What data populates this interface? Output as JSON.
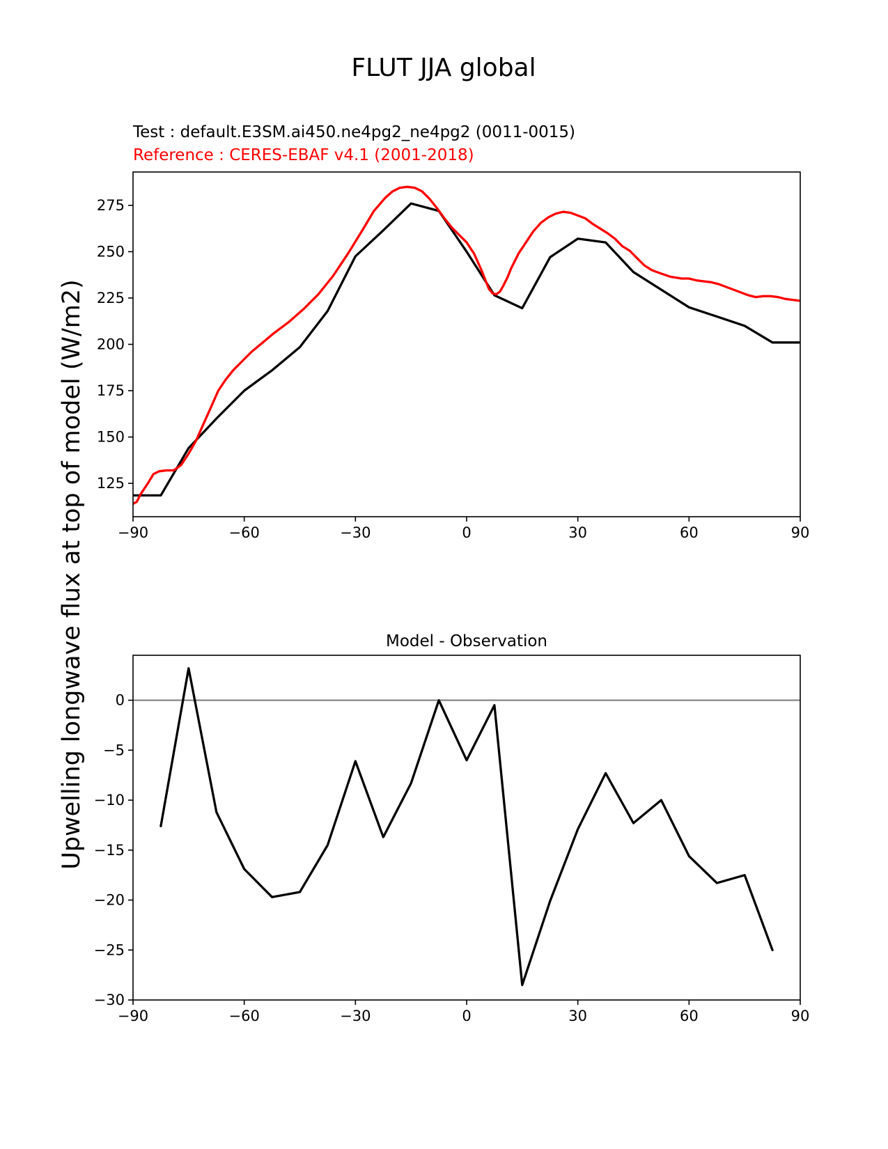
{
  "figure": {
    "suptitle": "FLUT JJA global",
    "ylabel": "Upwelling longwave flux at top of model (W/m2)"
  },
  "chart_data": [
    {
      "type": "line",
      "title_test": "Test : default.E3SM.ai450.ne4pg2_ne4pg2 (0011-0015)",
      "title_reference": "Reference : CERES-EBAF v4.1 (2001-2018)",
      "xlim": [
        -90,
        90
      ],
      "ylim": [
        107,
        293
      ],
      "xticks": [
        "−90",
        "−60",
        "−30",
        "0",
        "30",
        "60",
        "90"
      ],
      "yticks": [
        "125",
        "150",
        "175",
        "200",
        "225",
        "250",
        "275"
      ],
      "colors": {
        "test": "#000000",
        "reference": "#ff0000"
      },
      "series": [
        {
          "key": "test",
          "color": "#000000",
          "x": [
            -90,
            -82.5,
            -75,
            -67.5,
            -60,
            -52.5,
            -45,
            -37.5,
            -30,
            -22.5,
            -15,
            -7.5,
            0,
            7.5,
            15,
            22.5,
            30,
            37.5,
            45,
            52.5,
            60,
            67.5,
            75,
            82.5,
            90
          ],
          "y": [
            118.5,
            118.5,
            144,
            160,
            175,
            186,
            198.5,
            218,
            247.5,
            261.5,
            276,
            272,
            250,
            226.5,
            219.5,
            247,
            257,
            255,
            239,
            229.5,
            220,
            215,
            210,
            201,
            201
          ]
        },
        {
          "key": "reference",
          "color": "#ff0000",
          "x": [
            -90,
            -89,
            -88,
            -86,
            -84.5,
            -83,
            -81,
            -79,
            -77,
            -75,
            -73,
            -71,
            -69,
            -67,
            -65,
            -63,
            -61,
            -58,
            -55,
            -52,
            -48,
            -44,
            -40,
            -36,
            -32,
            -28,
            -25,
            -22,
            -20,
            -18,
            -16,
            -14,
            -12,
            -10,
            -8,
            -6,
            -4,
            -2,
            0,
            2,
            4,
            6,
            7,
            8,
            9,
            10,
            11,
            12,
            14,
            16,
            18,
            20,
            22,
            24,
            26,
            28,
            30,
            32,
            34,
            36,
            38,
            40,
            42,
            44,
            46,
            48,
            50,
            52,
            55,
            58,
            60,
            62,
            64,
            66,
            68,
            70,
            72,
            74,
            76,
            78,
            80,
            82,
            84,
            86,
            88,
            90
          ],
          "y": [
            114,
            115,
            119,
            125,
            130,
            131.5,
            132,
            132,
            135,
            141,
            148,
            157,
            166,
            175,
            181,
            186,
            190,
            196,
            201,
            206,
            212,
            219,
            227,
            237,
            249,
            262,
            272,
            279,
            282.5,
            284.5,
            285,
            284.5,
            282.5,
            278.5,
            273.5,
            268,
            263,
            259,
            255,
            249,
            240,
            230,
            227.5,
            227,
            228.5,
            232,
            236,
            241,
            249,
            255,
            261,
            265.5,
            268.5,
            270.5,
            271.5,
            271,
            269.5,
            268,
            265,
            262.5,
            260,
            257,
            253,
            250.5,
            246.5,
            242.5,
            240,
            238.5,
            236.5,
            235.5,
            235.5,
            234.5,
            234,
            233.5,
            232.5,
            231,
            229.5,
            228,
            226.5,
            225.5,
            226,
            226,
            225.5,
            224.5,
            224,
            223.5
          ]
        }
      ]
    },
    {
      "type": "line",
      "title": "Model - Observation",
      "xlim": [
        -90,
        90
      ],
      "ylim": [
        -30,
        4.5
      ],
      "xticks": [
        "−90",
        "−60",
        "−30",
        "0",
        "30",
        "60",
        "90"
      ],
      "yticks": [
        "−30",
        "−25",
        "−20",
        "−15",
        "−10",
        "−5",
        "0"
      ],
      "zero_line_color": "#808080",
      "series": [
        {
          "key": "difference",
          "color": "#000000",
          "x": [
            -82.5,
            -75,
            -67.5,
            -60,
            -52.5,
            -45,
            -37.5,
            -30,
            -22.5,
            -15,
            -7.5,
            0,
            7.5,
            15,
            22.5,
            30,
            37.5,
            45,
            52.5,
            60,
            67.5,
            75,
            82.5
          ],
          "y": [
            -12.6,
            3.2,
            -11.2,
            -16.9,
            -19.7,
            -19.2,
            -14.5,
            -6.1,
            -13.7,
            -8.3,
            0,
            -6,
            -0.5,
            -28.5,
            -20.1,
            -12.9,
            -7.3,
            -12.3,
            -10,
            -15.6,
            -18.3,
            -17.5,
            -25
          ]
        }
      ]
    }
  ]
}
